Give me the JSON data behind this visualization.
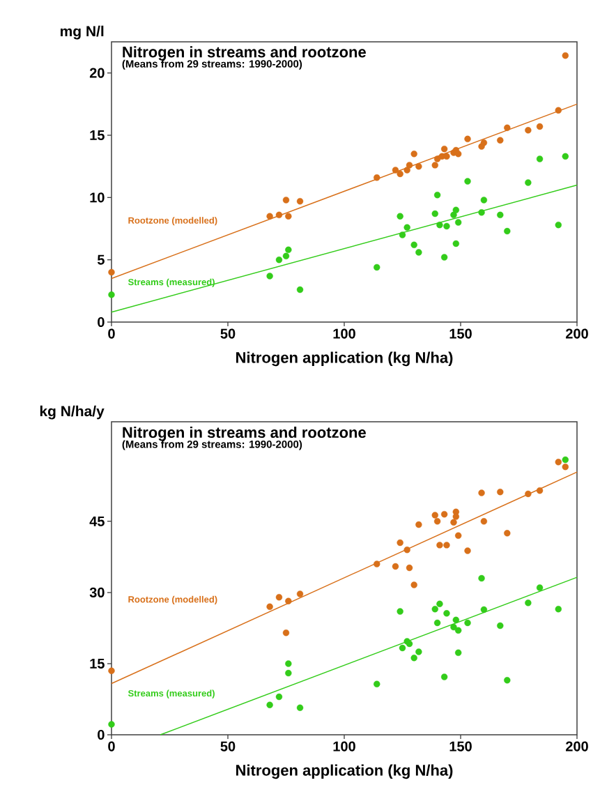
{
  "chart_data": [
    {
      "type": "scatter",
      "title": "Nitrogen in streams and rootzone",
      "subtitle": "(Means from 29 streams: 1990-2000)",
      "xlabel": "Nitrogen application (kg N/ha)",
      "ylabel": "mg N/l",
      "xlim": [
        0,
        200
      ],
      "ylim": [
        0,
        22.5
      ],
      "xticks": [
        0,
        50,
        100,
        150,
        200
      ],
      "yticks": [
        0,
        5,
        10,
        15,
        20
      ],
      "marker": "circle",
      "series": [
        {
          "name": "Rootzone (modelled)",
          "color": "#d8701a",
          "x": [
            0,
            68,
            72,
            75,
            76,
            81,
            114,
            122,
            124,
            127,
            128,
            130,
            132,
            139,
            140,
            142,
            143,
            144,
            147,
            148,
            149,
            153,
            159,
            160,
            167,
            170,
            179,
            184,
            192,
            195
          ],
          "values": [
            4.0,
            8.5,
            8.6,
            9.8,
            8.5,
            9.7,
            11.6,
            12.2,
            11.9,
            12.2,
            12.6,
            13.5,
            12.5,
            12.6,
            13.1,
            13.3,
            13.9,
            13.3,
            13.6,
            13.8,
            13.5,
            14.7,
            14.1,
            14.4,
            14.6,
            15.6,
            15.4,
            15.7,
            17.0,
            21.4
          ]
        },
        {
          "name": "Streams (measured)",
          "color": "#33cc1a",
          "x": [
            0,
            68,
            72,
            75,
            76,
            81,
            114,
            124,
            125,
            127,
            130,
            132,
            139,
            140,
            141,
            143,
            144,
            147,
            148,
            148,
            149,
            153,
            159,
            160,
            167,
            170,
            179,
            184,
            192,
            195
          ],
          "values": [
            2.2,
            3.7,
            5.0,
            5.3,
            5.8,
            2.6,
            4.4,
            8.5,
            7.0,
            7.6,
            6.2,
            5.6,
            8.7,
            10.2,
            7.8,
            5.2,
            7.7,
            8.6,
            9.0,
            6.3,
            8.0,
            11.3,
            8.8,
            9.8,
            8.6,
            7.3,
            11.2,
            13.1,
            7.8,
            13.3
          ]
        },
        {
          "type": "line",
          "marker": "none",
          "color": "#d8701a",
          "x": [
            0,
            200
          ],
          "values": [
            3.5,
            17.5
          ]
        },
        {
          "type": "line",
          "marker": "none",
          "color": "#33cc1a",
          "x": [
            0,
            200
          ],
          "values": [
            0.8,
            11.0
          ]
        }
      ]
    },
    {
      "type": "scatter",
      "title": "Nitrogen in streams and rootzone",
      "subtitle": "(Means from 29 streams: 1990-2000)",
      "xlabel": "Nitrogen application (kg N/ha)",
      "ylabel": "kg N/ha/y",
      "xlim": [
        0,
        200
      ],
      "ylim": [
        0,
        66
      ],
      "xticks": [
        0,
        50,
        100,
        150,
        200
      ],
      "yticks": [
        0,
        15,
        30,
        45
      ],
      "marker": "circle",
      "series": [
        {
          "name": "Rootzone (modelled)",
          "color": "#d8701a",
          "x": [
            0,
            68,
            72,
            76,
            75,
            81,
            114,
            122,
            124,
            127,
            128,
            130,
            132,
            139,
            140,
            141,
            144,
            143,
            147,
            148,
            148,
            149,
            153,
            159,
            160,
            167,
            170,
            179,
            184,
            192,
            195
          ],
          "values": [
            13.5,
            27,
            29,
            28.2,
            21.5,
            29.7,
            36,
            35.5,
            40.5,
            39,
            35.2,
            31.6,
            44.3,
            46.3,
            45,
            40,
            40,
            46.5,
            44.8,
            47,
            46,
            42,
            38.8,
            51,
            45,
            51.2,
            42.5,
            50.8,
            51.5,
            57.5,
            56.5
          ]
        },
        {
          "name": "Streams (measured)",
          "color": "#33cc1a",
          "x": [
            0,
            68,
            72,
            76,
            76,
            81,
            114,
            124,
            125,
            127,
            128,
            130,
            132,
            139,
            140,
            141,
            143,
            144,
            147,
            148,
            149,
            149,
            153,
            159,
            160,
            167,
            170,
            179,
            184,
            192,
            195
          ],
          "values": [
            2.2,
            6.3,
            8,
            13,
            15,
            5.7,
            10.7,
            26,
            18.3,
            19.7,
            19.2,
            16.2,
            17.5,
            26.5,
            23.6,
            27.6,
            12.2,
            25.6,
            22.7,
            24.2,
            22,
            17.3,
            23.6,
            33,
            26.4,
            23,
            11.5,
            27.8,
            31,
            26.5,
            58
          ]
        },
        {
          "type": "line",
          "marker": "none",
          "color": "#d8701a",
          "x": [
            0,
            200
          ],
          "values": [
            10.8,
            55.4
          ]
        },
        {
          "type": "line",
          "marker": "none",
          "color": "#33cc1a",
          "x": [
            21,
            200
          ],
          "values": [
            0,
            33.2
          ]
        }
      ]
    }
  ]
}
